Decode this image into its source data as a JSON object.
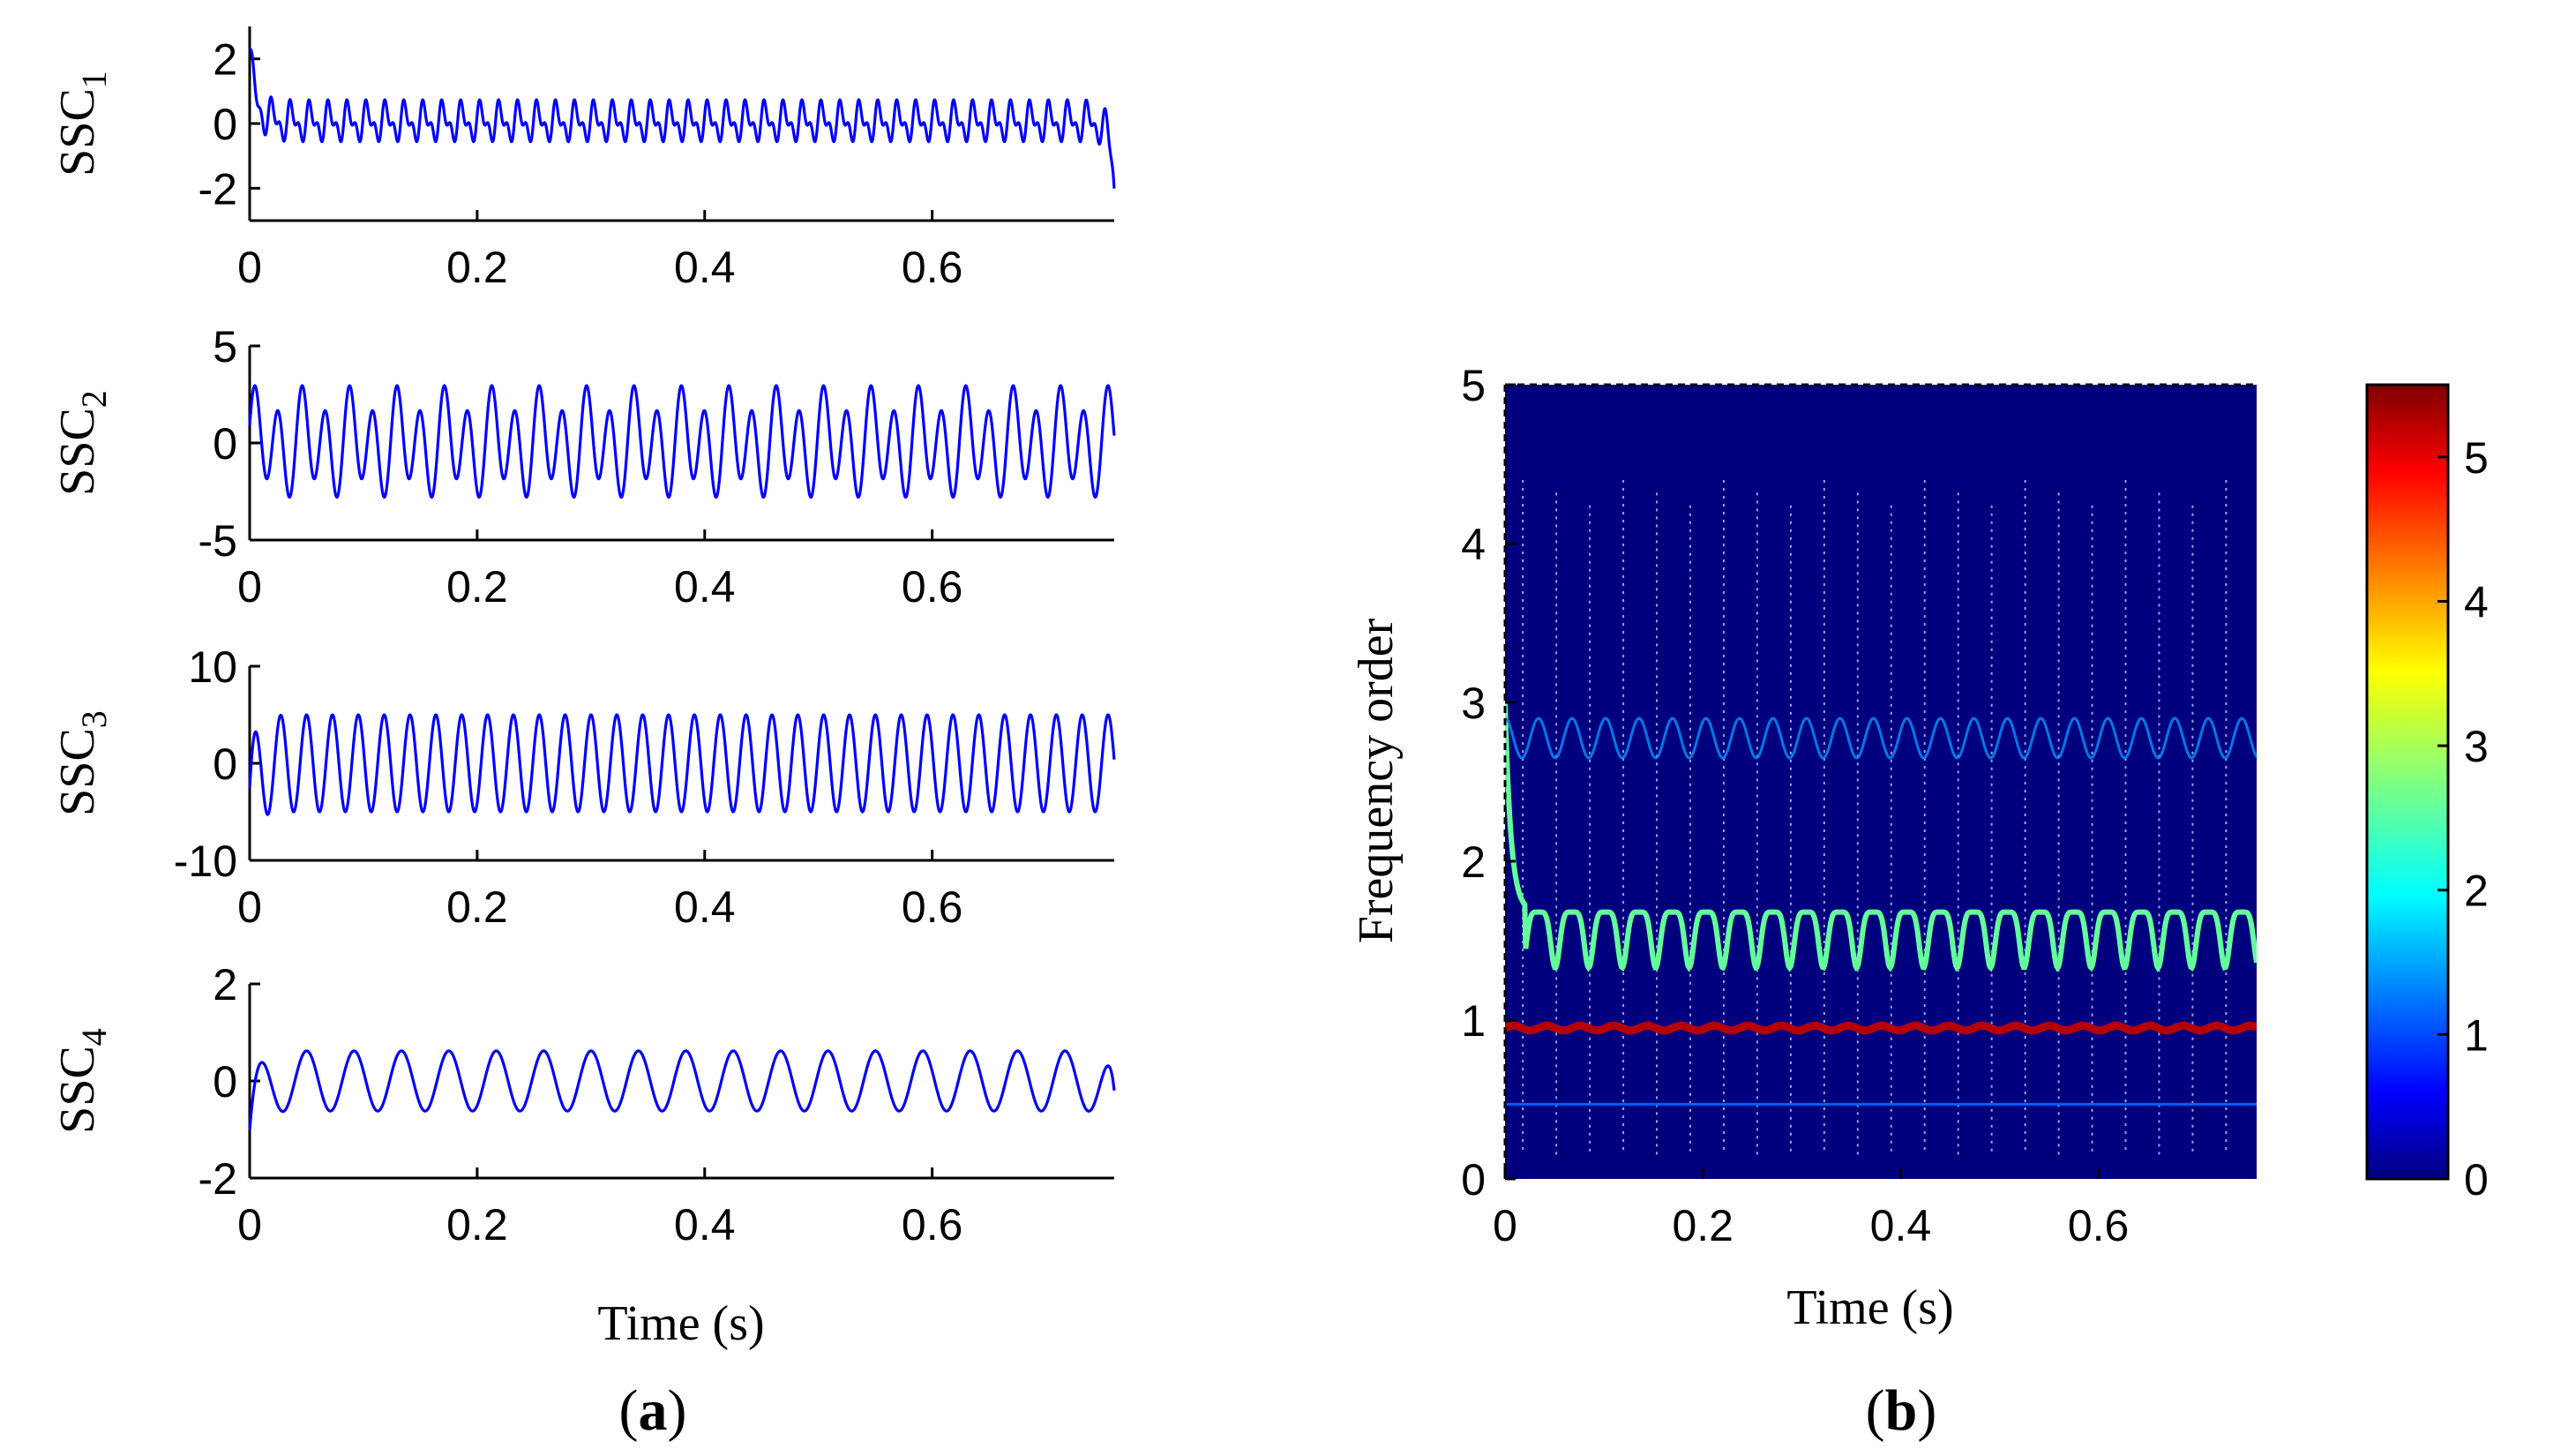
{
  "chart_data": [
    {
      "type": "line",
      "panel": "a",
      "title": "",
      "ylabel": "SSC_1",
      "ylabel_main": "SSC",
      "ylabel_sub": "1",
      "xlabel": "",
      "xlim": [
        0,
        0.76
      ],
      "ylim": [
        -3,
        3
      ],
      "xticks": [
        0,
        0.2,
        0.4,
        0.6
      ],
      "xtick_labels": [
        "0",
        "0.2",
        "0.4",
        "0.6"
      ],
      "yticks": [
        -2,
        0,
        2
      ],
      "ytick_labels": [
        "-2",
        "0",
        "2"
      ],
      "series": [
        {
          "name": "SSC1",
          "color": "#0000ff",
          "components": [
            {
              "freq": 60,
              "amp": 0.45
            },
            {
              "freq": 120,
              "amp": 0.3
            }
          ],
          "offset": 0.05,
          "edge_start": 2.0,
          "edge_end": -2.0
        }
      ]
    },
    {
      "type": "line",
      "panel": "a",
      "title": "",
      "ylabel": "SSC_2",
      "ylabel_main": "SSC",
      "ylabel_sub": "2",
      "xlabel": "",
      "xlim": [
        0,
        0.76
      ],
      "ylim": [
        -5,
        5
      ],
      "xticks": [
        0,
        0.2,
        0.4,
        0.6
      ],
      "xtick_labels": [
        "0",
        "0.2",
        "0.4",
        "0.6"
      ],
      "yticks": [
        -5,
        0,
        5
      ],
      "ytick_labels": [
        "-5",
        "0",
        "5"
      ],
      "series": [
        {
          "name": "SSC2",
          "color": "#0000ff",
          "components": [
            {
              "freq": 48,
              "amp": 2.3
            },
            {
              "freq": 24,
              "amp": 0.8
            }
          ],
          "offset": 0,
          "edge_start": 0,
          "edge_end": 0
        }
      ]
    },
    {
      "type": "line",
      "panel": "a",
      "title": "",
      "ylabel": "SSC_3",
      "ylabel_main": "SSC",
      "ylabel_sub": "3",
      "xlabel": "",
      "xlim": [
        0,
        0.76
      ],
      "ylim": [
        -10,
        10
      ],
      "xticks": [
        0,
        0.2,
        0.4,
        0.6
      ],
      "xtick_labels": [
        "0",
        "0.2",
        "0.4",
        "0.6"
      ],
      "yticks": [
        -10,
        0,
        10
      ],
      "ytick_labels": [
        "-10",
        "0",
        "10"
      ],
      "series": [
        {
          "name": "SSC3",
          "color": "#0000ff",
          "components": [
            {
              "freq": 44,
              "amp": 5
            }
          ],
          "offset": 0,
          "edge_start": -4,
          "edge_end": 0
        }
      ]
    },
    {
      "type": "line",
      "panel": "a",
      "title": "",
      "ylabel": "SSC_4",
      "ylabel_main": "SSC",
      "ylabel_sub": "4",
      "xlabel": "Time (s)",
      "xlim": [
        0,
        0.76
      ],
      "ylim": [
        -2,
        2
      ],
      "xticks": [
        0,
        0.2,
        0.4,
        0.6
      ],
      "xtick_labels": [
        "0",
        "0.2",
        "0.4",
        "0.6"
      ],
      "yticks": [
        -2,
        0,
        2
      ],
      "ytick_labels": [
        "-2",
        "0",
        "2"
      ],
      "series": [
        {
          "name": "SSC4",
          "color": "#0000ff",
          "components": [
            {
              "freq": 24,
              "amp": 0.62
            }
          ],
          "offset": 0,
          "edge_start": -1.2,
          "edge_end": -0.8
        }
      ]
    },
    {
      "type": "heatmap",
      "panel": "b",
      "title": "",
      "xlabel": "Time (s)",
      "ylabel": "Frequency order",
      "xlim": [
        0,
        0.76
      ],
      "ylim": [
        0,
        5
      ],
      "xticks": [
        0,
        0.2,
        0.4,
        0.6
      ],
      "xtick_labels": [
        "0",
        "0.2",
        "0.4",
        "0.6"
      ],
      "yticks": [
        0,
        1,
        2,
        3,
        4,
        5
      ],
      "ytick_labels": [
        "0",
        "1",
        "2",
        "3",
        "4",
        "5"
      ],
      "background_color": "#00007f",
      "ridges": [
        {
          "name": "order-0.5",
          "base": 0.47,
          "value": 1.2
        },
        {
          "name": "order-1",
          "base": 0.95,
          "value": 5.2
        },
        {
          "name": "order-1.7",
          "base": 1.68,
          "value": 2.6
        },
        {
          "name": "order-2.8",
          "base": 2.85,
          "value": 1.5
        }
      ],
      "spike_count": 22,
      "colorbar": {
        "min": 0,
        "max": 5.5,
        "ticks": [
          0,
          1,
          2,
          3,
          4,
          5
        ],
        "tick_labels": [
          "0",
          "1",
          "2",
          "3",
          "4",
          "5"
        ],
        "colormap": "jet"
      }
    }
  ],
  "panel_labels": {
    "a": "a",
    "b": "b"
  }
}
